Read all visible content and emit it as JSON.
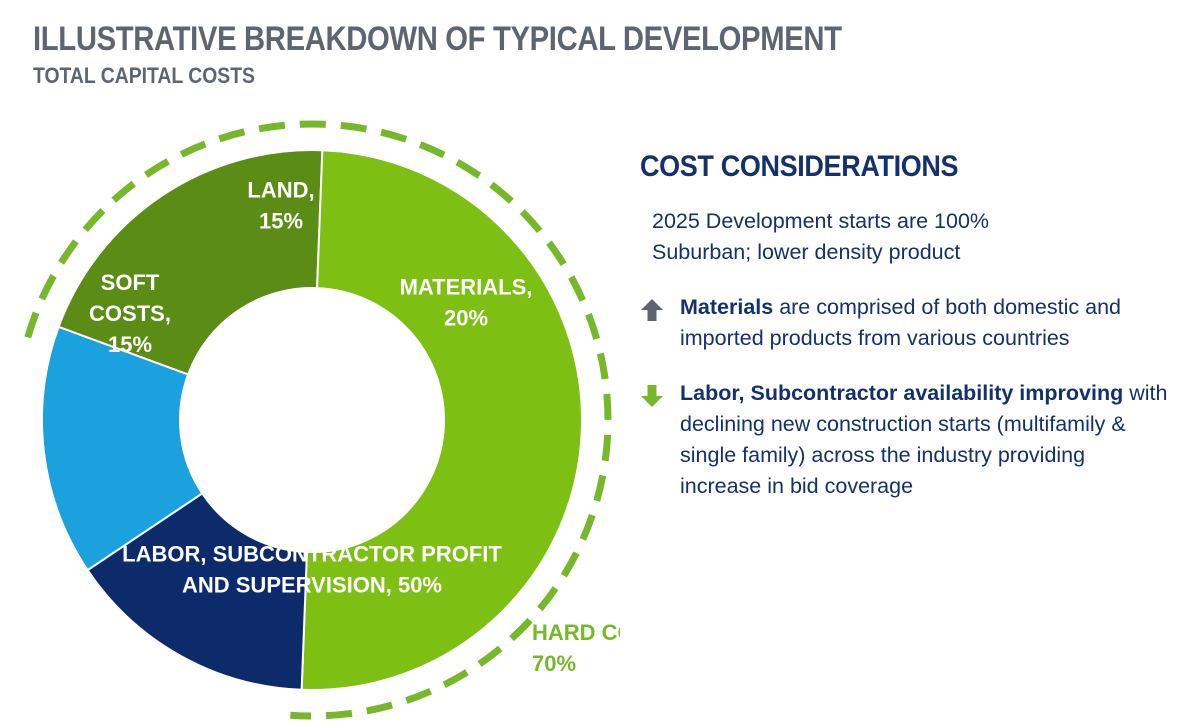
{
  "header": {
    "title": "ILLUSTRATIVE BREAKDOWN OF TYPICAL DEVELOPMENT",
    "subtitle": "TOTAL CAPITAL COSTS"
  },
  "chart_data": {
    "type": "pie",
    "variant": "donut",
    "categories": [
      "LAND",
      "MATERIALS",
      "LABOR, SUBCONTRACTOR PROFIT AND SUPERVISION",
      "SOFT COSTS"
    ],
    "values": [
      15,
      20,
      50,
      15
    ],
    "colors": [
      "#1ba2de",
      "#5b8c16",
      "#7dbf12",
      "#0d2a6b"
    ],
    "labels": [
      [
        "LAND,",
        "15%"
      ],
      [
        "MATERIALS,",
        "20%"
      ],
      [
        "LABOR, SUBCONTRACTOR PROFIT",
        "AND SUPERVISION, 50%"
      ],
      [
        "SOFT",
        "COSTS,",
        "15%"
      ]
    ],
    "group": {
      "label": [
        "HARD COSTS,",
        "70%"
      ],
      "value": 70,
      "members": [
        "MATERIALS",
        "LABOR, SUBCONTRACTOR PROFIT AND SUPERVISION"
      ],
      "color": "#76b82a",
      "style": "dashed-arc"
    }
  },
  "panel": {
    "title": "COST CONSIDERATIONS",
    "intro": "2025 Development starts are 100% Suburban; lower density product",
    "considerations": [
      {
        "icon": "arrow-up-icon",
        "icon_color": "#5d6670",
        "bold": "Materials",
        "text": " are comprised of both domestic and imported products from various countries"
      },
      {
        "icon": "arrow-down-icon",
        "icon_color": "#76b82a",
        "bold": "Labor, Subcontractor availability improving",
        "text": " with declining new construction starts (multifamily & single family) across the industry providing increase in bid coverage"
      }
    ]
  }
}
